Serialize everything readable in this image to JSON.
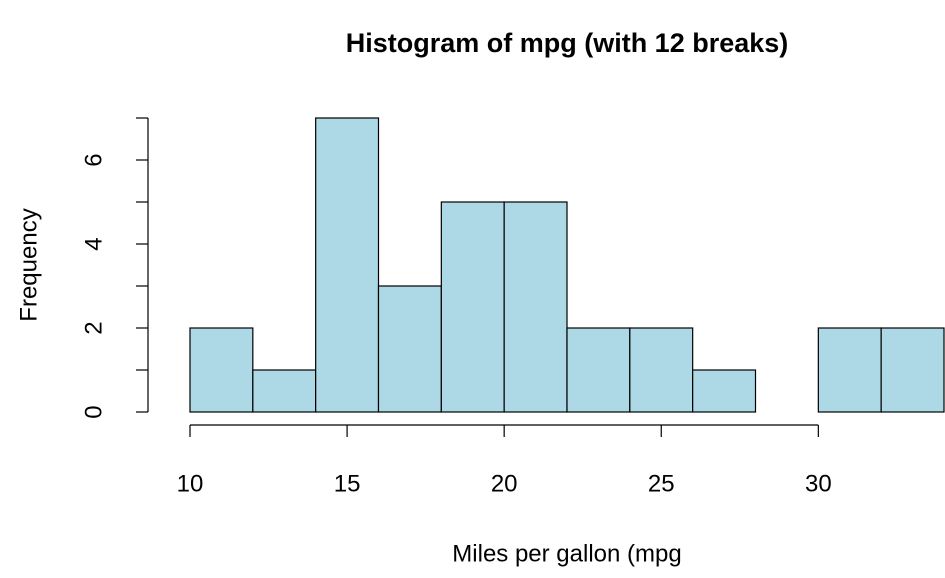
{
  "chart_data": {
    "type": "histogram",
    "title": "Histogram of mpg (with 12 breaks)",
    "x_label": "Miles per gallon (mpg",
    "y_label": "Frequency",
    "bins": [
      10,
      12,
      14,
      16,
      18,
      20,
      22,
      24,
      26,
      28,
      30,
      32,
      34
    ],
    "values": [
      2,
      1,
      7,
      3,
      5,
      5,
      2,
      2,
      1,
      0,
      2,
      2
    ],
    "color": "#add8e6",
    "xlim": [
      10,
      34
    ],
    "ylim": [
      0,
      7
    ],
    "xticks": [
      10,
      15,
      20,
      25,
      30
    ],
    "yticks": [
      0,
      2,
      4,
      6
    ],
    "yminor_ticks": [
      1,
      3,
      5,
      7
    ]
  }
}
